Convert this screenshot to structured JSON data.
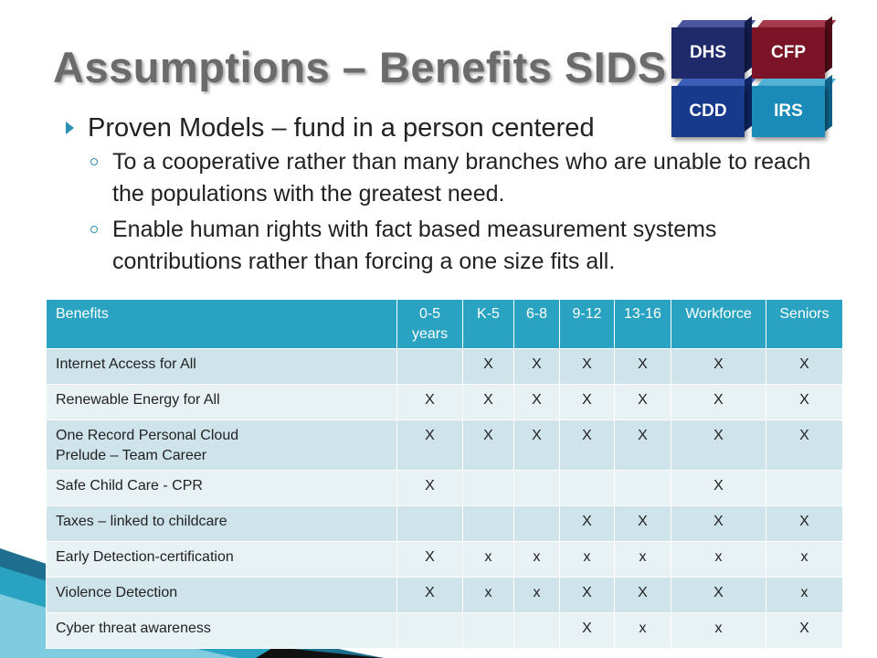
{
  "slide": {
    "title": "Assumptions – Benefits SIDS",
    "colors": {
      "accent": "#2aa3c2",
      "title": "#6b6b6b"
    }
  },
  "logo": {
    "cubes": [
      {
        "label": "DHS",
        "color": "#1f2a6b",
        "icon": "cube"
      },
      {
        "label": "CFP",
        "color": "#7a1426",
        "icon": "cube"
      },
      {
        "label": "CDD",
        "color": "#173a8c",
        "icon": "cube"
      },
      {
        "label": "IRS",
        "color": "#1a8ab8",
        "icon": "cube"
      }
    ]
  },
  "bullets": {
    "main": "Proven Models – fund in a person centered",
    "sub": [
      "To a cooperative rather than many branches who are unable to reach the populations with the greatest need.",
      "Enable human rights with fact based measurement systems contributions rather than forcing a one size fits all."
    ]
  },
  "table": {
    "headers": [
      "Benefits",
      "0-5 years",
      "K-5",
      "6-8",
      "9-12",
      "13-16",
      "Workforce",
      "Seniors"
    ],
    "rows": [
      {
        "name": "Internet Access for All",
        "cells": [
          "",
          "X",
          "X",
          "X",
          "X",
          "X",
          "X"
        ]
      },
      {
        "name": "Renewable Energy for All",
        "cells": [
          "X",
          "X",
          "X",
          "X",
          "X",
          "X",
          "X"
        ]
      },
      {
        "name": "One Record Personal Cloud",
        "name2": "Prelude – Team Career",
        "cells": [
          "X",
          "X",
          "X",
          "X",
          "X",
          "X",
          "X"
        ]
      },
      {
        "name": "Safe Child Care - CPR",
        "cells": [
          "X",
          "",
          "",
          "",
          "",
          "X",
          ""
        ]
      },
      {
        "name": "Taxes – linked to childcare",
        "cells": [
          "",
          "",
          "",
          "X",
          "X",
          "X",
          "X"
        ]
      },
      {
        "name": "Early Detection-certification",
        "cells": [
          "X",
          "x",
          "x",
          "x",
          "x",
          "x",
          "x"
        ]
      },
      {
        "name": "Violence Detection",
        "cells": [
          "X",
          "x",
          "x",
          "X",
          "X",
          "X",
          "x"
        ]
      },
      {
        "name": "Cyber threat awareness",
        "cells": [
          "",
          "",
          "",
          "X",
          "x",
          "x",
          "X"
        ]
      }
    ]
  }
}
